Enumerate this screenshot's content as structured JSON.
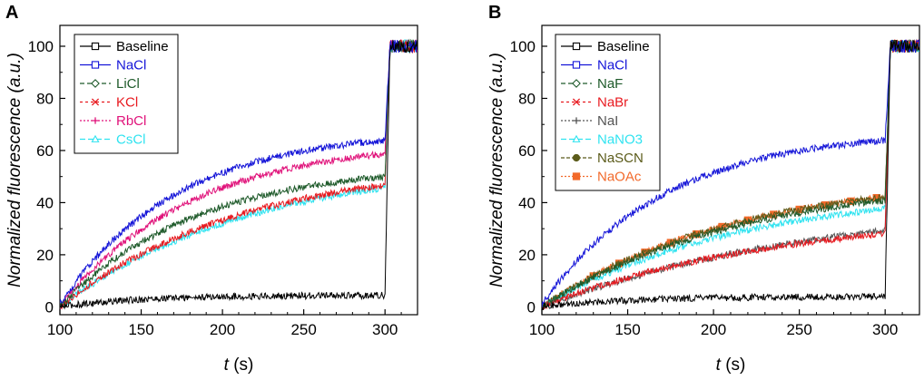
{
  "chart_data": [
    {
      "panel": "A",
      "type": "line",
      "xlabel_var": "t",
      "xlabel_unit": " (s)",
      "ylabel": "Normalized fluorescence (a.u.)",
      "xlim": [
        100,
        320
      ],
      "ylim": [
        -3,
        108
      ],
      "xticks": [
        100,
        150,
        200,
        250,
        300
      ],
      "yticks": [
        0,
        20,
        40,
        60,
        80,
        100
      ],
      "legend_position": "top-left",
      "series": [
        {
          "name": "Baseline",
          "color": "#000000",
          "marker": "square",
          "dash": "",
          "start": 0,
          "plateau": 4.5,
          "k": 0.02,
          "jump": 100,
          "noise": 1.0
        },
        {
          "name": "NaCl",
          "color": "#1515d8",
          "marker": "square",
          "dash": "",
          "start": 1,
          "plateau": 68,
          "k": 0.014,
          "jump": 100,
          "noise": 1.0
        },
        {
          "name": "LiCl",
          "color": "#1e5a2a",
          "marker": "diamond",
          "dash": "5,3",
          "start": 0,
          "plateau": 55,
          "k": 0.012,
          "jump": 100,
          "noise": 1.0
        },
        {
          "name": "KCl",
          "color": "#e8191f",
          "marker": "x",
          "dash": "3,3",
          "start": 0,
          "plateau": 56,
          "k": 0.009,
          "jump": 100,
          "noise": 1.0
        },
        {
          "name": "RbCl",
          "color": "#e0127a",
          "marker": "plus",
          "dash": "2,2",
          "start": 0,
          "plateau": 64,
          "k": 0.0125,
          "jump": 100,
          "noise": 1.0
        },
        {
          "name": "CsCl",
          "color": "#2fe3f0",
          "marker": "triangle",
          "dash": "6,3",
          "start": 0,
          "plateau": 56,
          "k": 0.0085,
          "jump": 100,
          "noise": 1.0
        }
      ]
    },
    {
      "panel": "B",
      "type": "line",
      "xlabel_var": "t",
      "xlabel_unit": " (s)",
      "ylabel": "Normalized fluorescence (a.u.)",
      "xlim": [
        100,
        320
      ],
      "ylim": [
        -3,
        108
      ],
      "xticks": [
        100,
        150,
        200,
        250,
        300
      ],
      "yticks": [
        0,
        20,
        40,
        60,
        80,
        100
      ],
      "legend_position": "top-left",
      "series": [
        {
          "name": "Baseline",
          "color": "#000000",
          "marker": "square",
          "dash": "",
          "start": 0,
          "plateau": 4,
          "k": 0.02,
          "jump": 100,
          "noise": 1.0
        },
        {
          "name": "NaCl",
          "color": "#1515d8",
          "marker": "square",
          "dash": "",
          "start": 1,
          "plateau": 68,
          "k": 0.014,
          "jump": 100,
          "noise": 1.0
        },
        {
          "name": "NaF",
          "color": "#1e5a2a",
          "marker": "diamond",
          "dash": "5,3",
          "start": 0,
          "plateau": 50,
          "k": 0.0085,
          "jump": 100,
          "noise": 1.0
        },
        {
          "name": "NaBr",
          "color": "#e8191f",
          "marker": "x",
          "dash": "3,3",
          "start": 0,
          "plateau": 36,
          "k": 0.0075,
          "jump": 100,
          "noise": 1.0
        },
        {
          "name": "NaI",
          "color": "#555555",
          "marker": "plus",
          "dash": "2,2",
          "start": 0,
          "plateau": 42,
          "k": 0.006,
          "jump": 100,
          "noise": 1.0
        },
        {
          "name": "NaNO3",
          "color": "#2fe3f0",
          "marker": "triangle",
          "dash": "6,3",
          "start": 0,
          "plateau": 46,
          "k": 0.0085,
          "jump": 100,
          "noise": 1.0
        },
        {
          "name": "NaSCN",
          "color": "#5b5b1a",
          "marker": "circle",
          "dash": "4,2",
          "start": 0,
          "plateau": 51,
          "k": 0.0088,
          "jump": 100,
          "noise": 1.0
        },
        {
          "name": "NaOAc",
          "color": "#f26a2b",
          "marker": "square-filled",
          "dash": "2,2",
          "start": 0,
          "plateau": 51,
          "k": 0.0088,
          "jump": 100,
          "noise": 1.0
        }
      ]
    }
  ]
}
